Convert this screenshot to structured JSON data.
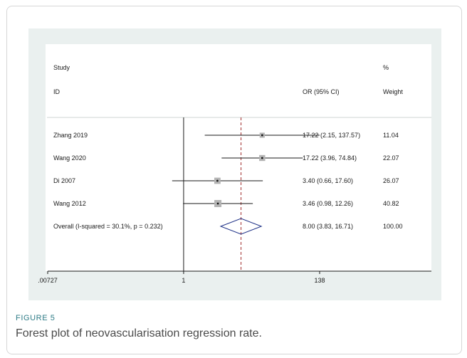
{
  "figure": {
    "label": "FIGURE 5",
    "caption": "Forest plot of neovascularisation regression rate."
  },
  "chart_data": {
    "type": "forest",
    "headers": {
      "study_top": "Study",
      "study_bottom": "ID",
      "or_col": "OR (95% CI)",
      "weight_top": "%",
      "weight_bottom": "Weight"
    },
    "x_scale": "log",
    "x_ticks": [
      {
        "value": 0.00727,
        "label": ".00727"
      },
      {
        "value": 1,
        "label": "1"
      },
      {
        "value": 138,
        "label": "138"
      }
    ],
    "xlim": [
      0.00727,
      138
    ],
    "null_line": 1,
    "overall_line": 8.0,
    "studies": [
      {
        "label": "Zhang 2019",
        "or": 17.22,
        "lo": 2.15,
        "hi": 137.57,
        "or_text": "17.22 (2.15, 137.57)",
        "weight": 11.04,
        "weight_text": "11.04"
      },
      {
        "label": "Wang 2020",
        "or": 17.22,
        "lo": 3.96,
        "hi": 74.84,
        "or_text": "17.22 (3.96, 74.84)",
        "weight": 22.07,
        "weight_text": "22.07"
      },
      {
        "label": "Di 2007",
        "or": 3.4,
        "lo": 0.66,
        "hi": 17.6,
        "or_text": "3.40 (0.66, 17.60)",
        "weight": 26.07,
        "weight_text": "26.07"
      },
      {
        "label": "Wang 2012",
        "or": 3.46,
        "lo": 0.98,
        "hi": 12.26,
        "or_text": "3.46 (0.98, 12.26)",
        "weight": 40.82,
        "weight_text": "40.82"
      }
    ],
    "overall": {
      "label": "Overall  (I-squared = 30.1%, p = 0.232)",
      "or": 8.0,
      "lo": 3.83,
      "hi": 16.71,
      "or_text": "8.00 (3.83, 16.71)",
      "weight_text": "100.00"
    },
    "colors": {
      "panel": "#eaf0ef",
      "axis": "#1a1a1a",
      "square": "#b4b4b4",
      "overall_diamond": "#1c2f86",
      "overall_line": "#a02828",
      "caption_label": "#2f7c87"
    }
  }
}
